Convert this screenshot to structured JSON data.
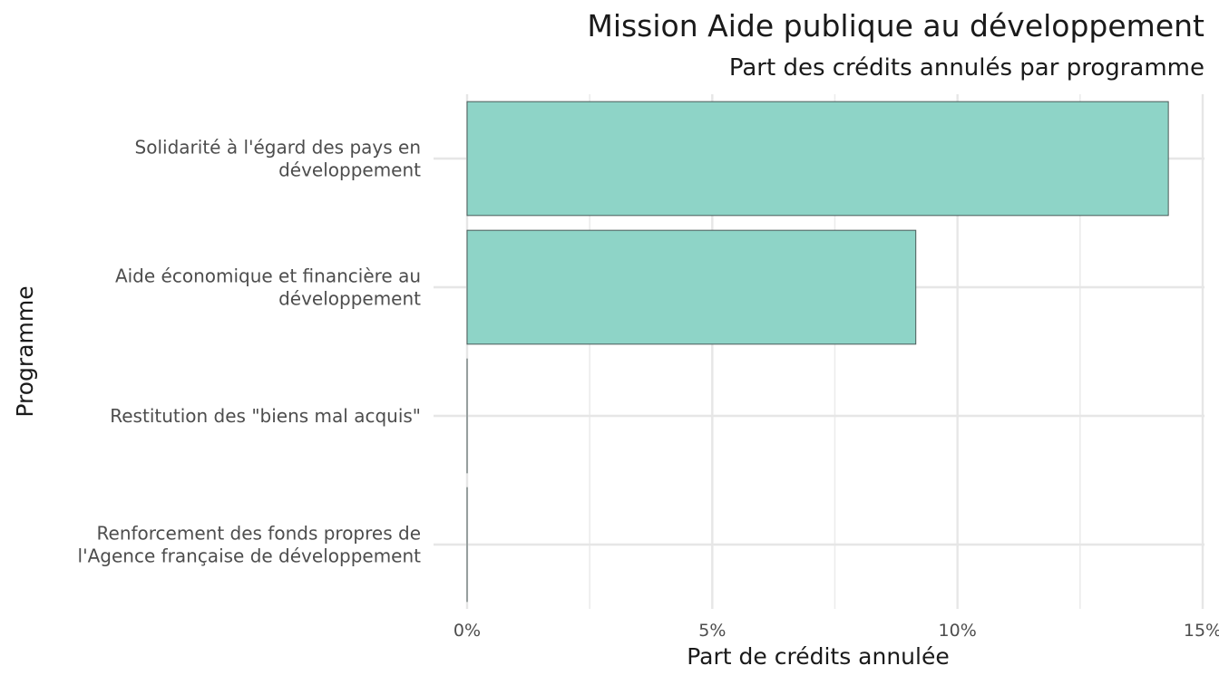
{
  "chart_data": {
    "type": "bar",
    "orientation": "horizontal",
    "title": "Mission Aide publique au développement",
    "subtitle": "Part des crédits annulés par programme",
    "xlabel": "Part de crédits annulée",
    "ylabel": "Programme",
    "categories": [
      [
        "Solidarité à l'égard des pays en",
        "développement"
      ],
      [
        "Aide économique et financière au",
        "développement"
      ],
      [
        "Restitution des \"biens mal acquis\""
      ],
      [
        "Renforcement des fonds propres de",
        "l'Agence française de développement"
      ]
    ],
    "values": [
      14.3,
      9.15,
      0,
      0
    ],
    "value_unit": "%",
    "xlim": [
      0,
      15
    ],
    "x_ticks": [
      0,
      5,
      10,
      15
    ],
    "x_tick_labels": [
      "0%",
      "5%",
      "10%",
      "15%"
    ],
    "grid": true,
    "legend": "none",
    "bar_fill": "#8ed4c7",
    "bar_stroke": "#4a5a58"
  }
}
